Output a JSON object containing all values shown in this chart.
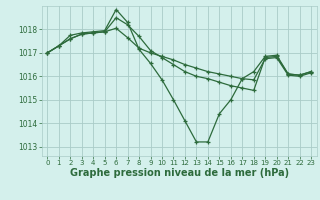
{
  "bg_color": "#d4f0ec",
  "grid_color": "#aaccc8",
  "line_color": "#2d6b3c",
  "title": "Graphe pression niveau de la mer (hPa)",
  "ylim": [
    1012.6,
    1019.0
  ],
  "xlim": [
    -0.5,
    23.5
  ],
  "yticks": [
    1013,
    1014,
    1015,
    1016,
    1017,
    1018
  ],
  "xticks": [
    0,
    1,
    2,
    3,
    4,
    5,
    6,
    7,
    8,
    9,
    10,
    11,
    12,
    13,
    14,
    15,
    16,
    17,
    18,
    19,
    20,
    21,
    22,
    23
  ],
  "line1_x": [
    0,
    1,
    2,
    3,
    4,
    5,
    6,
    7,
    8,
    9,
    10,
    11,
    12,
    13,
    14,
    15,
    16,
    17,
    18,
    19,
    20,
    21,
    22,
    23
  ],
  "line1_y": [
    1017.0,
    1017.3,
    1017.6,
    1017.8,
    1017.85,
    1017.9,
    1018.5,
    1018.2,
    1017.7,
    1017.1,
    1016.8,
    1016.5,
    1016.2,
    1016.0,
    1015.9,
    1015.75,
    1015.6,
    1015.5,
    1015.4,
    1016.8,
    1016.85,
    1016.1,
    1016.05,
    1016.2
  ],
  "line2_x": [
    0,
    1,
    2,
    3,
    4,
    5,
    6,
    7,
    8,
    9,
    10,
    11,
    12,
    13,
    14,
    15,
    16,
    17,
    18,
    19,
    20,
    21,
    22,
    23
  ],
  "line2_y": [
    1017.0,
    1017.3,
    1017.75,
    1017.85,
    1017.9,
    1017.95,
    1018.85,
    1018.3,
    1017.15,
    1016.55,
    1015.85,
    1015.0,
    1014.1,
    1013.2,
    1013.2,
    1014.4,
    1015.0,
    1015.9,
    1016.2,
    1016.85,
    1016.9,
    1016.1,
    1016.05,
    1016.2
  ],
  "line3_x": [
    0,
    1,
    2,
    3,
    4,
    5,
    6,
    7,
    8,
    9,
    10,
    11,
    12,
    13,
    14,
    15,
    16,
    17,
    18,
    19,
    20,
    21,
    22,
    23
  ],
  "line3_y": [
    1017.0,
    1017.3,
    1017.6,
    1017.8,
    1017.85,
    1017.9,
    1018.05,
    1017.65,
    1017.2,
    1017.0,
    1016.85,
    1016.7,
    1016.5,
    1016.35,
    1016.2,
    1016.1,
    1016.0,
    1015.9,
    1015.85,
    1016.75,
    1016.8,
    1016.05,
    1016.0,
    1016.15
  ],
  "marker": "+",
  "marker_size": 3,
  "linewidth": 0.9,
  "title_fontsize": 7.0,
  "tick_fontsize": 5.5
}
